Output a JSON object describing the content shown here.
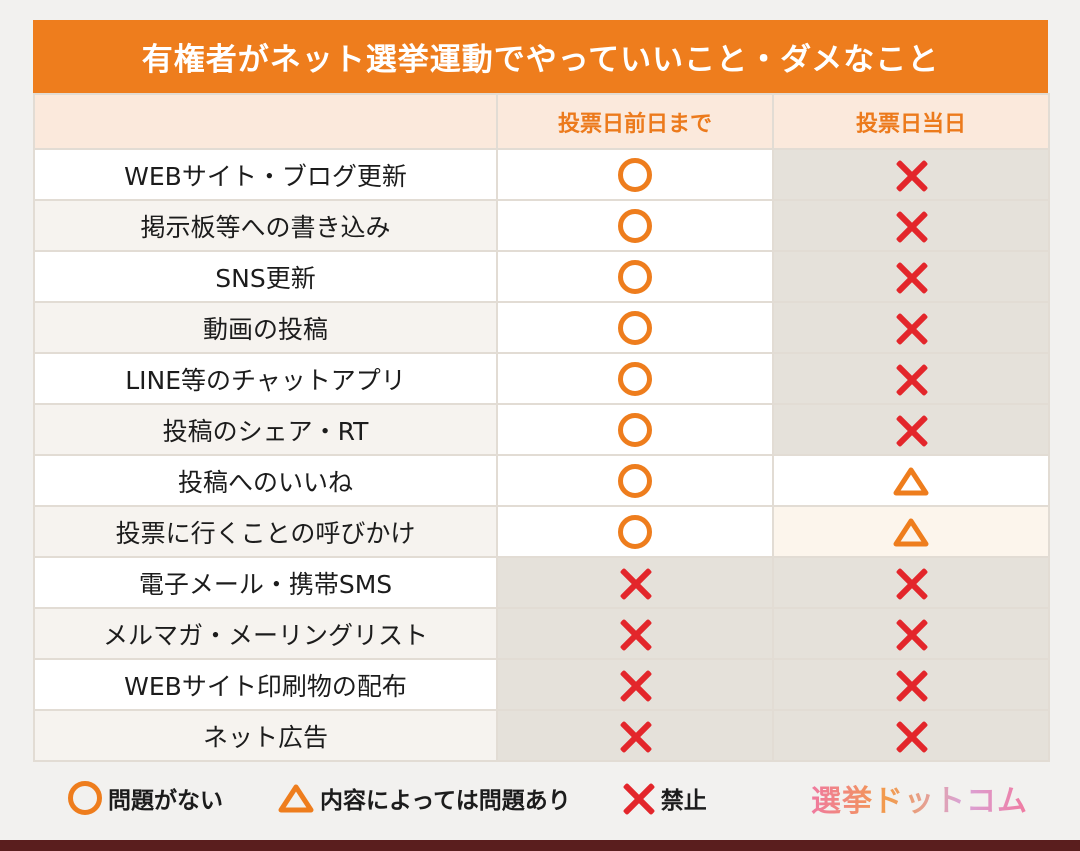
{
  "title": "有権者がネット選挙運動でやっていいこと・ダメなこと",
  "headers": {
    "item": "",
    "before": "投票日前日まで",
    "day": "投票日当日"
  },
  "rows": [
    {
      "label": "WEBサイト・ブログ更新",
      "before": "ok",
      "day": "ng"
    },
    {
      "label": "掲示板等への書き込み",
      "before": "ok",
      "day": "ng"
    },
    {
      "label": "SNS更新",
      "before": "ok",
      "day": "ng"
    },
    {
      "label": "動画の投稿",
      "before": "ok",
      "day": "ng"
    },
    {
      "label": "LINE等のチャットアプリ",
      "before": "ok",
      "day": "ng"
    },
    {
      "label": "投稿のシェア・RT",
      "before": "ok",
      "day": "ng"
    },
    {
      "label": "投稿へのいいね",
      "before": "ok",
      "day": "maybe"
    },
    {
      "label": "投票に行くことの呼びかけ",
      "before": "ok",
      "day": "maybe"
    },
    {
      "label": "電子メール・携帯SMS",
      "before": "ng",
      "day": "ng"
    },
    {
      "label": "メルマガ・メーリングリスト",
      "before": "ng",
      "day": "ng"
    },
    {
      "label": "WEBサイト印刷物の配布",
      "before": "ng",
      "day": "ng"
    },
    {
      "label": "ネット広告",
      "before": "ng",
      "day": "ng"
    }
  ],
  "legend": {
    "ok": "問題がない",
    "maybe": "内容によっては問題あり",
    "ng": "禁止"
  },
  "logo": "選挙ドットコム",
  "colors": {
    "orange": "#ee7d1d",
    "red": "#e3262b",
    "header_bg": "#fbe9dc",
    "gray_cell": "#e5e1da"
  }
}
